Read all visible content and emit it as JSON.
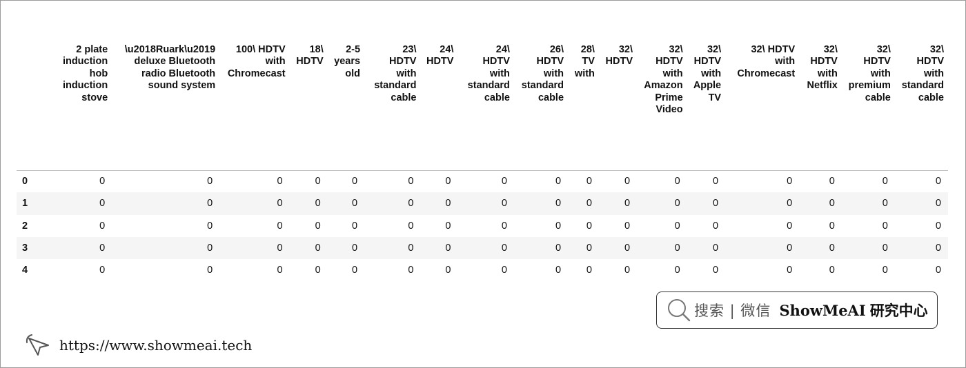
{
  "table": {
    "columns": [
      [
        "2 plate",
        "induction",
        "hob",
        "induction",
        "stove"
      ],
      [
        "\\u2018Ruark\\u2019",
        "deluxe Bluetooth",
        "radio Bluetooth",
        "sound system"
      ],
      [
        "100\\ HDTV",
        "with",
        "Chromecast"
      ],
      [
        "18\\",
        "HDTV"
      ],
      [
        "2-5",
        "years",
        "old"
      ],
      [
        "23\\",
        "HDTV",
        "with",
        "standard",
        "cable"
      ],
      [
        "24\\",
        "HDTV"
      ],
      [
        "24\\",
        "HDTV",
        "with",
        "standard",
        "cable"
      ],
      [
        "26\\",
        "HDTV",
        "with",
        "standard",
        "cable"
      ],
      [
        "28\\",
        "TV",
        "with"
      ],
      [
        "32\\",
        "HDTV"
      ],
      [
        "32\\",
        "HDTV",
        "with",
        "Amazon",
        "Prime",
        "Video"
      ],
      [
        "32\\",
        "HDTV",
        "with",
        "Apple",
        "TV"
      ],
      [
        "32\\ HDTV",
        "with",
        "Chromecast"
      ],
      [
        "32\\",
        "HDTV",
        "with",
        "Netflix"
      ],
      [
        "32\\",
        "HDTV",
        "with",
        "premium",
        "cable"
      ],
      [
        "32\\",
        "HDTV",
        "with",
        "standard",
        "cable"
      ]
    ],
    "index": [
      "0",
      "1",
      "2",
      "3",
      "4"
    ],
    "rows": [
      [
        "0",
        "0",
        "0",
        "0",
        "0",
        "0",
        "0",
        "0",
        "0",
        "0",
        "0",
        "0",
        "0",
        "0",
        "0",
        "0",
        "0"
      ],
      [
        "0",
        "0",
        "0",
        "0",
        "0",
        "0",
        "0",
        "0",
        "0",
        "0",
        "0",
        "0",
        "0",
        "0",
        "0",
        "0",
        "0"
      ],
      [
        "0",
        "0",
        "0",
        "0",
        "0",
        "0",
        "0",
        "0",
        "0",
        "0",
        "0",
        "0",
        "0",
        "0",
        "0",
        "0",
        "0"
      ],
      [
        "0",
        "0",
        "0",
        "0",
        "0",
        "0",
        "0",
        "0",
        "0",
        "0",
        "0",
        "0",
        "0",
        "0",
        "0",
        "0",
        "0"
      ],
      [
        "0",
        "0",
        "0",
        "0",
        "0",
        "0",
        "0",
        "0",
        "0",
        "0",
        "0",
        "0",
        "0",
        "0",
        "0",
        "0",
        "0"
      ]
    ]
  },
  "watermark": {
    "search_label": "搜索 | 微信",
    "brand": "ShowMeAI",
    "brand_cn": "研究中心",
    "url": "https://www.showmeai.tech",
    "search_icon": "search-icon",
    "cursor_icon": "cursor-icon"
  }
}
